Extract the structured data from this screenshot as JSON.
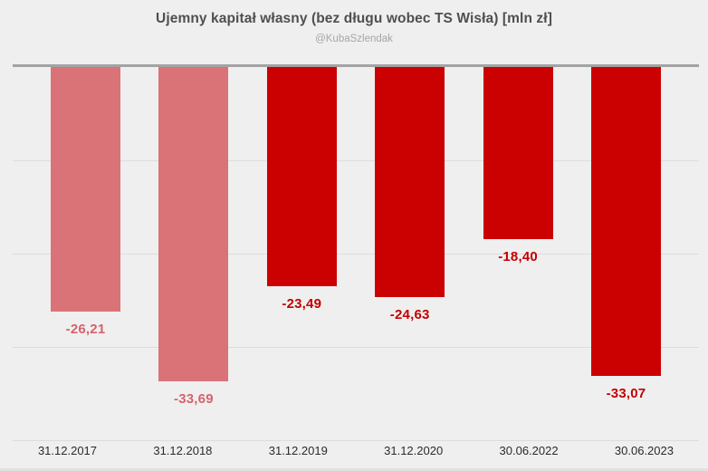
{
  "header": {
    "title": "Ujemny kapitał własny (bez długu wobec TS Wisła) [mln zł]",
    "subtitle": "@KubaSzlendak"
  },
  "chart_data": {
    "type": "bar",
    "title": "Ujemny kapitał własny (bez długu wobec TS Wisła) [mln zł]",
    "subtitle": "@KubaSzlendak",
    "categories": [
      "31.12.2017",
      "31.12.2018",
      "31.12.2019",
      "31.12.2020",
      "30.06.2022",
      "30.06.2023"
    ],
    "values": [
      -26.21,
      -33.69,
      -23.49,
      -24.63,
      -18.4,
      -33.07
    ],
    "value_labels": [
      "-26,21",
      "-33,69",
      "-23,49",
      "-24,63",
      "-18,40",
      "-33,07"
    ],
    "bar_colors": [
      "#d97377",
      "#d97377",
      "#cb0000",
      "#cb0000",
      "#cb0000",
      "#cb0000"
    ],
    "label_colors": [
      "#d5636d",
      "#d5636d",
      "#c40000",
      "#c40000",
      "#c40000",
      "#c40000"
    ],
    "xlabel": "",
    "ylabel": "",
    "ylim": [
      -40,
      0
    ],
    "gridline_step": 10,
    "grid": true,
    "legend": false,
    "legend_position": "none",
    "baseline_value": 0
  },
  "colors": {
    "background": "#efefef",
    "baseline": "#a3a3a3",
    "gridline": "#dcdcdc",
    "title": "#4f4f4f",
    "subtitle": "#a6a6a6",
    "axis_label": "#2b2b2b",
    "bottom_edge": "#e0e0e0"
  }
}
